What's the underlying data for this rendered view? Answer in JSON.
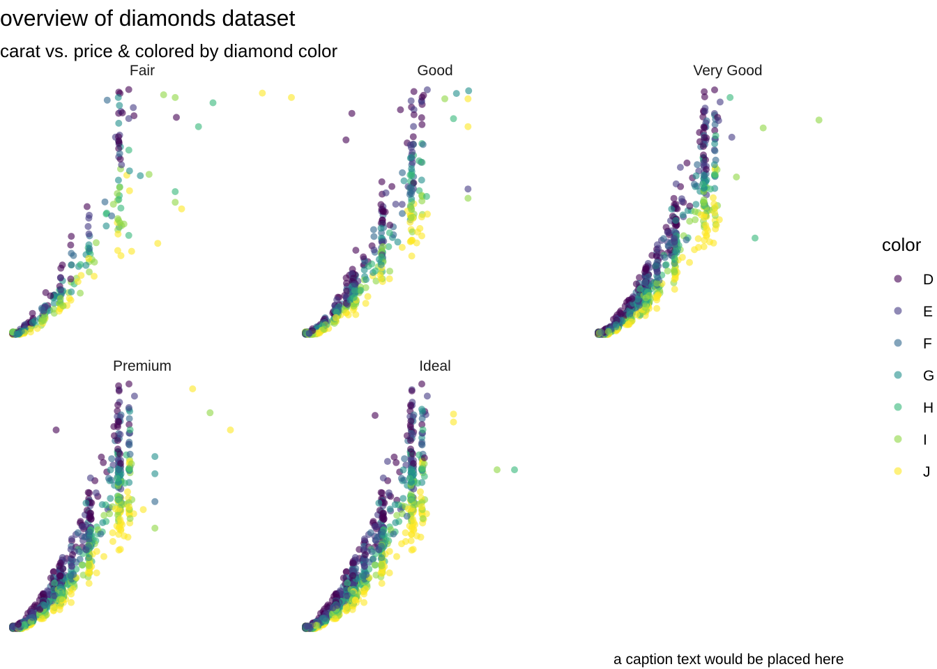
{
  "title": "overview of diamonds dataset",
  "subtitle": "carat vs. price & colored by diamond color",
  "caption": "a caption text would be placed here",
  "legend": {
    "title": "color",
    "items": [
      {
        "label": "D",
        "color": "#440154"
      },
      {
        "label": "E",
        "color": "#443A83"
      },
      {
        "label": "F",
        "color": "#31688E"
      },
      {
        "label": "G",
        "color": "#21908C"
      },
      {
        "label": "H",
        "color": "#35B779"
      },
      {
        "label": "I",
        "color": "#8FD744"
      },
      {
        "label": "J",
        "color": "#FDE725"
      }
    ]
  },
  "chart_data": {
    "type": "scatter",
    "facet_by": "cut",
    "x": "carat",
    "y": "price",
    "color_by": "color",
    "xlim": [
      0.2,
      5.0
    ],
    "ylim": [
      326,
      18823
    ],
    "axes_visible": false,
    "grid": false,
    "legend_position": "right",
    "point_alpha": 0.6,
    "facets": [
      {
        "label": "Fair",
        "outliers": [
          {
            "x": 4.5,
            "y": 18531,
            "color": "J"
          },
          {
            "x": 5.0,
            "y": 18200,
            "color": "J"
          },
          {
            "x": 3.65,
            "y": 17800,
            "color": "H"
          },
          {
            "x": 3.4,
            "y": 16000,
            "color": "H"
          },
          {
            "x": 3.02,
            "y": 16700,
            "color": "D"
          },
          {
            "x": 2.02,
            "y": 18200,
            "color": "G"
          },
          {
            "x": 2.04,
            "y": 17600,
            "color": "G"
          },
          {
            "x": 1.83,
            "y": 18000,
            "color": "F"
          },
          {
            "x": 2.8,
            "y": 18400,
            "color": "I"
          },
          {
            "x": 3.0,
            "y": 18200,
            "color": "I"
          },
          {
            "x": 2.4,
            "y": 12300,
            "color": "G"
          },
          {
            "x": 2.55,
            "y": 12400,
            "color": "I"
          },
          {
            "x": 3.0,
            "y": 10300,
            "color": "I"
          },
          {
            "x": 3.0,
            "y": 11100,
            "color": "H"
          },
          {
            "x": 3.11,
            "y": 9800,
            "color": "J"
          },
          {
            "x": 2.7,
            "y": 7200,
            "color": "J"
          },
          {
            "x": 2.25,
            "y": 6600,
            "color": "J"
          },
          {
            "x": 2.2,
            "y": 7800,
            "color": "H"
          },
          {
            "x": 0.71,
            "y": 2200,
            "color": "F"
          }
        ]
      },
      {
        "label": "Good",
        "outliers": [
          {
            "x": 3.01,
            "y": 18700,
            "color": "G"
          },
          {
            "x": 2.8,
            "y": 18500,
            "color": "G"
          },
          {
            "x": 2.6,
            "y": 18100,
            "color": "I"
          },
          {
            "x": 3.0,
            "y": 18100,
            "color": "J"
          },
          {
            "x": 3.0,
            "y": 16000,
            "color": "J"
          },
          {
            "x": 3.0,
            "y": 11300,
            "color": "E"
          },
          {
            "x": 3.0,
            "y": 10600,
            "color": "I"
          },
          {
            "x": 2.3,
            "y": 9400,
            "color": "J"
          },
          {
            "x": 1.0,
            "y": 17000,
            "color": "D"
          },
          {
            "x": 0.9,
            "y": 15000,
            "color": "D"
          },
          {
            "x": 2.75,
            "y": 16600,
            "color": "H"
          }
        ]
      },
      {
        "label": "Very Good",
        "outliers": [
          {
            "x": 4.0,
            "y": 16500,
            "color": "I"
          },
          {
            "x": 3.04,
            "y": 15900,
            "color": "I"
          },
          {
            "x": 2.9,
            "y": 7600,
            "color": "H"
          },
          {
            "x": 2.58,
            "y": 12200,
            "color": "I"
          },
          {
            "x": 2.5,
            "y": 15200,
            "color": "E"
          },
          {
            "x": 2.47,
            "y": 18200,
            "color": "H"
          }
        ]
      },
      {
        "label": "Premium",
        "outliers": [
          {
            "x": 3.3,
            "y": 18400,
            "color": "J"
          },
          {
            "x": 3.6,
            "y": 16600,
            "color": "I"
          },
          {
            "x": 3.95,
            "y": 15300,
            "color": "J"
          },
          {
            "x": 2.65,
            "y": 13300,
            "color": "G"
          },
          {
            "x": 2.65,
            "y": 12000,
            "color": "G"
          },
          {
            "x": 2.65,
            "y": 9900,
            "color": "F"
          },
          {
            "x": 2.65,
            "y": 7900,
            "color": "I"
          },
          {
            "x": 2.45,
            "y": 9300,
            "color": "J"
          },
          {
            "x": 0.95,
            "y": 15300,
            "color": "D"
          }
        ]
      },
      {
        "label": "Ideal",
        "outliers": [
          {
            "x": 3.5,
            "y": 12300,
            "color": "I"
          },
          {
            "x": 3.8,
            "y": 12300,
            "color": "H"
          },
          {
            "x": 2.75,
            "y": 16500,
            "color": "J"
          },
          {
            "x": 2.75,
            "y": 15900,
            "color": "J"
          },
          {
            "x": 2.25,
            "y": 13200,
            "color": "D"
          },
          {
            "x": 2.25,
            "y": 11800,
            "color": "H"
          },
          {
            "x": 1.95,
            "y": 8800,
            "color": "F"
          },
          {
            "x": 1.4,
            "y": 16400,
            "color": "D"
          }
        ]
      }
    ]
  }
}
